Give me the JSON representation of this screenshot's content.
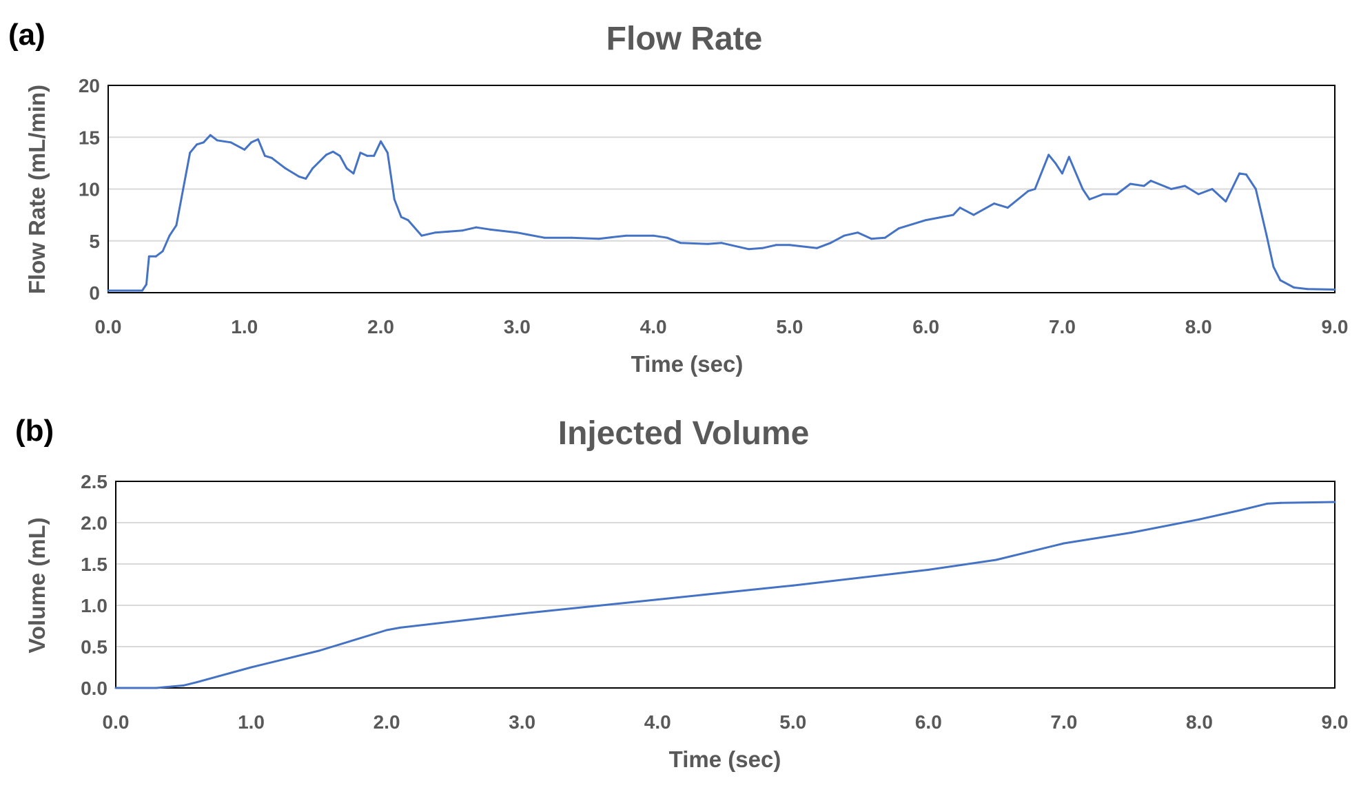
{
  "chart_data": [
    {
      "type": "line",
      "panel_label": "(a)",
      "title": "Flow Rate",
      "xlabel": "Time (sec)",
      "ylabel": "Flow Rate (mL/min)",
      "xlim": [
        0,
        9
      ],
      "ylim": [
        0,
        20
      ],
      "xticks": [
        "0.0",
        "1.0",
        "2.0",
        "3.0",
        "4.0",
        "5.0",
        "6.0",
        "7.0",
        "8.0",
        "9.0"
      ],
      "yticks": [
        "0",
        "5",
        "10",
        "15",
        "20"
      ],
      "grid": true,
      "legend": "none",
      "color": "#4472C4",
      "x": [
        0,
        0.25,
        0.28,
        0.3,
        0.35,
        0.4,
        0.45,
        0.5,
        0.55,
        0.6,
        0.65,
        0.7,
        0.75,
        0.8,
        0.9,
        1.0,
        1.05,
        1.1,
        1.15,
        1.2,
        1.3,
        1.4,
        1.45,
        1.5,
        1.6,
        1.65,
        1.7,
        1.75,
        1.8,
        1.85,
        1.9,
        1.95,
        2.0,
        2.05,
        2.1,
        2.15,
        2.2,
        2.3,
        2.4,
        2.5,
        2.6,
        2.7,
        2.8,
        3.0,
        3.2,
        3.4,
        3.6,
        3.8,
        4.0,
        4.1,
        4.2,
        4.4,
        4.5,
        4.7,
        4.8,
        4.9,
        5.0,
        5.2,
        5.3,
        5.4,
        5.5,
        5.6,
        5.7,
        5.8,
        6.0,
        6.2,
        6.25,
        6.35,
        6.5,
        6.6,
        6.75,
        6.8,
        6.9,
        6.95,
        7.0,
        7.05,
        7.15,
        7.2,
        7.3,
        7.4,
        7.5,
        7.6,
        7.65,
        7.8,
        7.9,
        8.0,
        8.1,
        8.2,
        8.3,
        8.35,
        8.42,
        8.5,
        8.55,
        8.6,
        8.7,
        8.8,
        9.0
      ],
      "y": [
        0.2,
        0.2,
        0.8,
        3.5,
        3.5,
        4,
        5.5,
        6.5,
        10,
        13.5,
        14.3,
        14.5,
        15.2,
        14.7,
        14.5,
        13.8,
        14.5,
        14.8,
        13.2,
        13,
        12,
        11.2,
        11,
        12,
        13.3,
        13.6,
        13.2,
        12,
        11.5,
        13.5,
        13.2,
        13.2,
        14.6,
        13.5,
        9,
        7.3,
        7,
        5.5,
        5.8,
        5.9,
        6,
        6.3,
        6.1,
        5.8,
        5.3,
        5.3,
        5.2,
        5.5,
        5.5,
        5.3,
        4.8,
        4.7,
        4.8,
        4.2,
        4.3,
        4.6,
        4.6,
        4.3,
        4.8,
        5.5,
        5.8,
        5.2,
        5.3,
        6.2,
        7,
        7.5,
        8.2,
        7.5,
        8.6,
        8.2,
        9.8,
        10,
        13.3,
        12.5,
        11.5,
        13.1,
        10,
        9,
        9.5,
        9.5,
        10.5,
        10.3,
        10.8,
        10,
        10.3,
        9.5,
        10,
        8.8,
        11.5,
        11.4,
        10,
        5.5,
        2.5,
        1.2,
        0.5,
        0.35,
        0.3
      ]
    },
    {
      "type": "line",
      "panel_label": "(b)",
      "title": "Injected Volume",
      "xlabel": "Time (sec)",
      "ylabel": "Volume (mL)",
      "xlim": [
        0,
        9
      ],
      "ylim": [
        0,
        2.5
      ],
      "xticks": [
        "0.0",
        "1.0",
        "2.0",
        "3.0",
        "4.0",
        "5.0",
        "6.0",
        "7.0",
        "8.0",
        "9.0"
      ],
      "yticks": [
        "0.0",
        "0.5",
        "1.0",
        "1.5",
        "2.0",
        "2.5"
      ],
      "grid": true,
      "legend": "none",
      "color": "#4472C4",
      "x": [
        0,
        0.3,
        0.5,
        0.6,
        1.0,
        1.5,
        2.0,
        2.1,
        3.0,
        4.0,
        5.0,
        6.0,
        6.5,
        7.0,
        7.5,
        8.0,
        8.3,
        8.5,
        8.6,
        9.0
      ],
      "y": [
        0,
        0,
        0.03,
        0.07,
        0.25,
        0.45,
        0.7,
        0.73,
        0.9,
        1.07,
        1.24,
        1.43,
        1.55,
        1.75,
        1.88,
        2.04,
        2.15,
        2.23,
        2.24,
        2.25
      ]
    }
  ]
}
